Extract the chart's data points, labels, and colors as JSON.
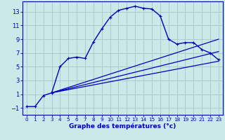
{
  "xlabel": "Graphe des températures (°c)",
  "bg_color": "#cce8e8",
  "grid_color": "#aacccc",
  "line_color": "#0000bb",
  "xlim": [
    -0.5,
    23.5
  ],
  "ylim": [
    -2.0,
    14.5
  ],
  "xticks": [
    0,
    1,
    2,
    3,
    4,
    5,
    6,
    7,
    8,
    9,
    10,
    11,
    12,
    13,
    14,
    15,
    16,
    17,
    18,
    19,
    20,
    21,
    22,
    23
  ],
  "yticks": [
    -1,
    1,
    3,
    5,
    7,
    9,
    11,
    13
  ],
  "line1_x": [
    0,
    1,
    2,
    3,
    4,
    5,
    6,
    7,
    8,
    9,
    10,
    11,
    12,
    13,
    14,
    15,
    16,
    17,
    18,
    19,
    20,
    21,
    22,
    23
  ],
  "line1_y": [
    -0.8,
    -0.8,
    0.8,
    1.2,
    5.0,
    6.2,
    6.4,
    6.2,
    8.6,
    10.5,
    12.2,
    13.2,
    13.5,
    13.8,
    13.5,
    13.4,
    12.4,
    9.0,
    8.3,
    8.5,
    8.5,
    7.5,
    7.0,
    6.0
  ],
  "line2_x": [
    3,
    23
  ],
  "line2_y": [
    1.2,
    5.8
  ],
  "line3_x": [
    3,
    23
  ],
  "line3_y": [
    1.2,
    7.2
  ],
  "line4_x": [
    3,
    23
  ],
  "line4_y": [
    1.2,
    9.0
  ],
  "xlabel_fontsize": 6.5,
  "tick_fontsize_x": 5.2,
  "tick_fontsize_y": 6.0
}
